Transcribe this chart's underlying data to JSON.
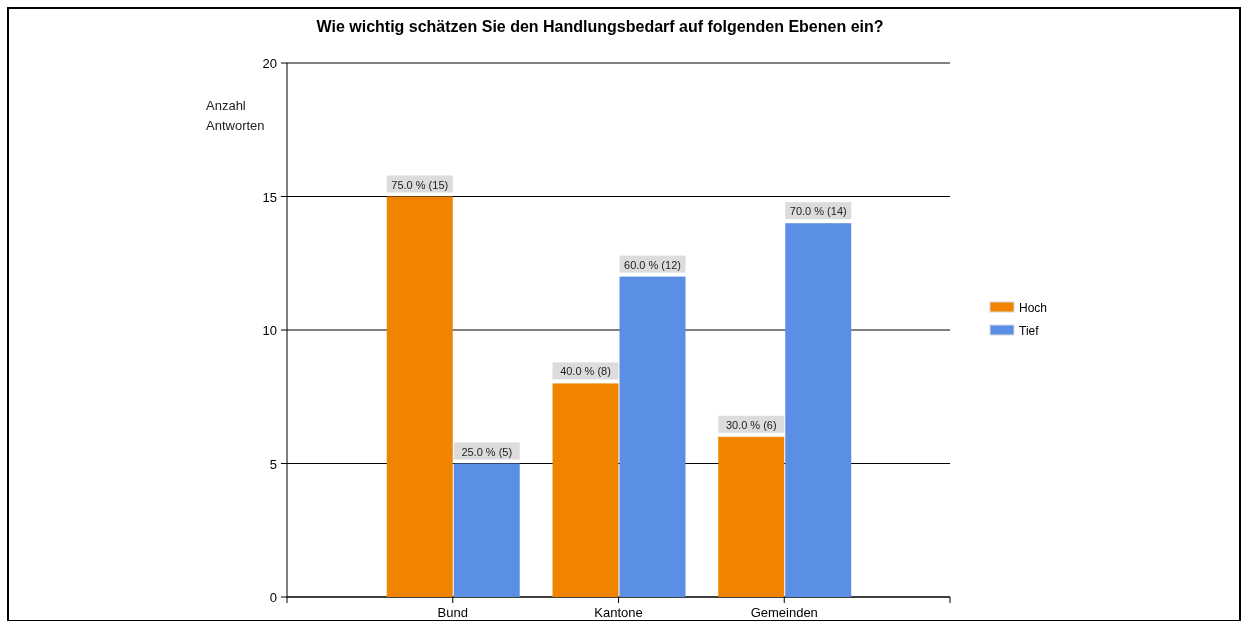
{
  "chart_data": {
    "type": "bar",
    "title": "Wie wichtig schätzen Sie den Handlungsbedarf auf folgenden Ebenen ein?",
    "ylabel": "Anzahl Antworten",
    "categories": [
      "Bund",
      "Kantone",
      "Gemeinden"
    ],
    "series": [
      {
        "name": "Hoch",
        "color": "#f08300",
        "values": [
          15,
          8,
          6
        ],
        "value_labels": [
          "75.0 % (15)",
          "40.0 % (8)",
          "30.0 % (6)"
        ]
      },
      {
        "name": "Tief",
        "color": "#5b8fe6",
        "values": [
          5,
          12,
          14
        ],
        "value_labels": [
          "25.0 % (5)",
          "60.0 % (12)",
          "70.0 % (14)"
        ]
      }
    ],
    "ylim": [
      0,
      20
    ],
    "yticks": [
      0,
      5,
      10,
      15,
      20
    ],
    "grid": "y",
    "legend": "right"
  }
}
